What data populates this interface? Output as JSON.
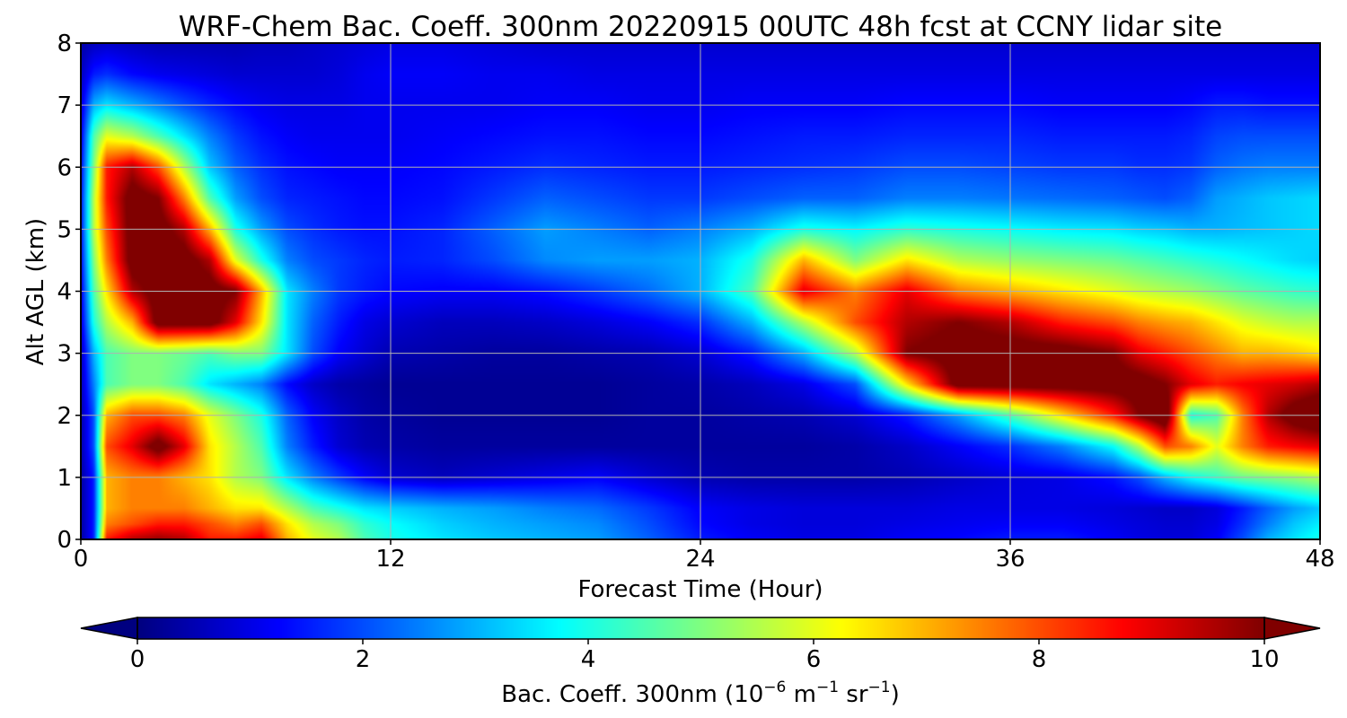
{
  "chart_data": {
    "type": "heatmap",
    "title": "WRF-Chem Bac. Coeff. 300nm  20220915 00UTC 48h fcst at CCNY lidar site",
    "xlabel": "Forecast Time (Hour)",
    "ylabel": "Alt AGL (km)",
    "xlim": [
      0,
      48
    ],
    "ylim": [
      0,
      8
    ],
    "x_ticks": [
      0,
      12,
      24,
      36,
      48
    ],
    "y_ticks": [
      0,
      1,
      2,
      3,
      4,
      5,
      6,
      7,
      8
    ],
    "grid": true,
    "colormap": "jet",
    "colorbar": {
      "orientation": "horizontal",
      "placement": "bottom",
      "extend": "both",
      "range": [
        0,
        10
      ],
      "ticks": [
        0,
        2,
        4,
        6,
        8,
        10
      ],
      "label_main": "Bac. Coeff. 300nm  (10",
      "label_exp1": "−6",
      "label_mid": " m",
      "label_exp2": "−1",
      "label_mid2": " sr",
      "label_exp3": "−1",
      "label_end": ")"
    },
    "x_hours": [
      0,
      0.5,
      1,
      2,
      3,
      4,
      5,
      6,
      7,
      8,
      9,
      10,
      11,
      12,
      14,
      16,
      18,
      20,
      22,
      24,
      26,
      28,
      30,
      32,
      34,
      36,
      38,
      40,
      41,
      42,
      43,
      44,
      45,
      46,
      47,
      48
    ],
    "y_km": [
      0,
      0.25,
      0.5,
      1,
      1.5,
      2,
      2.5,
      3,
      3.5,
      4,
      4.5,
      5,
      5.5,
      6,
      6.5,
      7,
      7.5,
      8
    ],
    "values": [
      [
        0.3,
        1.5,
        8.5,
        9.5,
        9.8,
        9.5,
        8.5,
        8.5,
        9.0,
        7.0,
        6.0,
        5.5,
        4.5,
        4.0,
        3.5,
        3.2,
        3.0,
        2.8,
        2.2,
        1.5,
        1.2,
        1.0,
        1.0,
        1.2,
        1.3,
        1.5,
        1.5,
        1.2,
        1.0,
        0.9,
        0.9,
        1.2,
        2.0,
        3.0,
        3.5,
        4.0
      ],
      [
        0.3,
        1.5,
        7.5,
        8.0,
        8.5,
        8.5,
        8.0,
        7.5,
        8.0,
        6.5,
        5.5,
        5.0,
        4.2,
        3.8,
        3.3,
        3.0,
        2.8,
        2.6,
        2.0,
        1.3,
        1.0,
        0.9,
        0.9,
        1.0,
        1.1,
        1.2,
        1.2,
        1.0,
        0.9,
        0.8,
        0.8,
        1.0,
        1.7,
        2.5,
        3.2,
        3.6
      ],
      [
        0.3,
        1.5,
        7.0,
        7.5,
        7.5,
        7.5,
        7.0,
        6.5,
        6.5,
        5.5,
        4.5,
        4.0,
        3.5,
        3.3,
        3.0,
        2.8,
        2.5,
        2.3,
        1.8,
        1.2,
        1.0,
        0.9,
        0.9,
        0.9,
        1.0,
        1.0,
        1.0,
        0.9,
        0.8,
        0.7,
        0.7,
        0.9,
        1.5,
        2.2,
        2.8,
        3.2
      ],
      [
        0.3,
        1.5,
        7.0,
        7.5,
        7.5,
        7.0,
        6.5,
        5.5,
        5.0,
        3.5,
        2.5,
        1.8,
        1.2,
        0.8,
        0.6,
        0.8,
        1.0,
        1.2,
        0.8,
        0.5,
        0.4,
        0.4,
        0.4,
        0.5,
        0.7,
        0.9,
        1.0,
        1.4,
        2.0,
        3.0,
        3.8,
        4.3,
        4.8,
        5.0,
        5.2,
        5.5
      ],
      [
        0.4,
        2.0,
        8.0,
        9.0,
        10.5,
        9.0,
        6.5,
        5.5,
        4.5,
        2.5,
        1.5,
        0.8,
        0.5,
        0.4,
        0.3,
        0.3,
        0.3,
        0.3,
        0.3,
        0.3,
        0.3,
        0.3,
        0.4,
        0.7,
        1.2,
        1.7,
        2.5,
        3.8,
        5.5,
        8.0,
        7.5,
        6.0,
        7.5,
        8.5,
        8.8,
        9.0
      ],
      [
        0.4,
        2.0,
        7.0,
        8.0,
        8.0,
        7.5,
        6.0,
        5.0,
        4.0,
        2.2,
        1.2,
        0.7,
        0.4,
        0.3,
        0.2,
        0.2,
        0.2,
        0.2,
        0.3,
        0.3,
        0.4,
        0.5,
        0.8,
        1.5,
        2.8,
        4.5,
        6.5,
        8.5,
        10.0,
        11.0,
        4.0,
        4.5,
        7.5,
        9.5,
        10.5,
        11.0
      ],
      [
        0.5,
        2.5,
        4.5,
        5.0,
        5.0,
        4.5,
        3.5,
        3.0,
        2.5,
        1.3,
        0.7,
        0.4,
        0.3,
        0.2,
        0.2,
        0.2,
        0.2,
        0.2,
        0.3,
        0.4,
        0.6,
        1.0,
        2.0,
        6.5,
        10.5,
        10.5,
        10.5,
        10.5,
        10.5,
        10.0,
        9.0,
        8.5,
        8.8,
        9.0,
        9.2,
        9.5
      ],
      [
        0.5,
        3.0,
        4.5,
        5.0,
        5.0,
        4.8,
        4.5,
        5.0,
        5.0,
        3.5,
        2.0,
        1.2,
        0.8,
        0.5,
        0.4,
        0.3,
        0.3,
        0.4,
        0.5,
        0.8,
        1.5,
        3.0,
        5.5,
        10.0,
        10.5,
        10.5,
        10.5,
        10.0,
        9.0,
        8.5,
        8.0,
        7.5,
        7.0,
        7.0,
        6.8,
        6.5
      ],
      [
        0.8,
        4.0,
        5.5,
        7.0,
        10.5,
        10.5,
        10.5,
        9.0,
        6.5,
        3.5,
        2.2,
        1.5,
        1.0,
        0.8,
        0.6,
        0.6,
        0.7,
        0.9,
        1.2,
        1.7,
        3.0,
        5.5,
        8.0,
        9.5,
        10.0,
        9.5,
        8.5,
        8.0,
        7.5,
        7.2,
        7.0,
        6.5,
        6.0,
        5.7,
        5.5,
        5.5
      ],
      [
        1.0,
        4.5,
        6.5,
        9.5,
        10.5,
        10.5,
        10.5,
        10.0,
        7.0,
        3.5,
        2.5,
        1.8,
        1.5,
        1.3,
        1.2,
        1.2,
        1.4,
        1.8,
        2.3,
        3.0,
        4.5,
        9.0,
        7.5,
        9.0,
        7.5,
        7.0,
        6.5,
        6.0,
        5.7,
        5.5,
        5.3,
        5.0,
        4.7,
        4.5,
        4.3,
        4.2
      ],
      [
        1.2,
        5.0,
        7.5,
        10.5,
        10.5,
        10.5,
        9.5,
        6.0,
        4.0,
        2.5,
        2.0,
        1.8,
        1.6,
        1.5,
        1.6,
        2.0,
        2.6,
        2.8,
        2.8,
        3.0,
        4.0,
        7.0,
        5.0,
        6.5,
        5.5,
        5.2,
        5.0,
        4.8,
        4.6,
        4.4,
        4.2,
        4.0,
        3.8,
        3.6,
        3.4,
        3.3
      ],
      [
        1.3,
        5.5,
        8.0,
        10.5,
        10.5,
        9.5,
        7.0,
        4.0,
        2.8,
        2.0,
        1.7,
        1.5,
        1.4,
        1.4,
        1.6,
        2.2,
        2.8,
        2.5,
        2.2,
        2.5,
        3.0,
        4.0,
        3.7,
        4.2,
        4.0,
        3.8,
        3.6,
        3.5,
        3.3,
        3.2,
        3.0,
        3.0,
        3.1,
        3.2,
        3.3,
        3.4
      ],
      [
        1.3,
        5.5,
        8.5,
        10.5,
        10.0,
        7.5,
        4.5,
        2.8,
        2.0,
        1.6,
        1.5,
        1.4,
        1.3,
        1.3,
        1.4,
        1.8,
        2.2,
        2.0,
        1.8,
        1.8,
        2.0,
        2.2,
        2.2,
        2.5,
        2.5,
        2.4,
        2.3,
        2.2,
        2.1,
        2.0,
        2.2,
        2.8,
        3.0,
        3.2,
        3.3,
        3.4
      ],
      [
        1.2,
        5.0,
        8.5,
        9.5,
        8.0,
        5.5,
        3.2,
        2.2,
        1.7,
        1.4,
        1.3,
        1.2,
        1.2,
        1.2,
        1.3,
        1.5,
        1.7,
        1.6,
        1.5,
        1.5,
        1.6,
        1.7,
        1.8,
        2.0,
        2.0,
        1.9,
        1.8,
        1.8,
        1.7,
        1.7,
        1.8,
        2.2,
        2.4,
        2.5,
        2.5,
        2.5
      ],
      [
        1.0,
        4.5,
        6.0,
        5.5,
        4.5,
        3.5,
        2.5,
        1.8,
        1.4,
        1.2,
        1.1,
        1.1,
        1.1,
        1.1,
        1.2,
        1.3,
        1.4,
        1.4,
        1.3,
        1.3,
        1.4,
        1.5,
        1.5,
        1.6,
        1.6,
        1.6,
        1.5,
        1.5,
        1.5,
        1.5,
        1.6,
        1.9,
        2.0,
        2.0,
        2.0,
        2.0
      ],
      [
        0.8,
        3.0,
        3.5,
        3.0,
        2.5,
        2.0,
        1.6,
        1.3,
        1.1,
        1.0,
        1.0,
        1.0,
        1.1,
        1.1,
        1.1,
        1.1,
        1.2,
        1.2,
        1.1,
        1.1,
        1.2,
        1.2,
        1.2,
        1.3,
        1.3,
        1.3,
        1.2,
        1.2,
        1.2,
        1.2,
        1.3,
        1.5,
        1.5,
        1.4,
        1.4,
        1.4
      ],
      [
        0.6,
        1.5,
        1.7,
        1.3,
        1.1,
        1.0,
        0.9,
        0.8,
        0.8,
        0.8,
        0.8,
        0.9,
        1.1,
        1.2,
        1.2,
        1.1,
        1.1,
        1.0,
        1.0,
        1.0,
        1.0,
        1.0,
        1.0,
        1.0,
        1.0,
        1.0,
        1.0,
        1.0,
        1.0,
        1.0,
        1.0,
        1.0,
        1.0,
        1.0,
        1.0,
        1.0
      ],
      [
        0.4,
        0.6,
        0.7,
        0.6,
        0.5,
        0.5,
        0.5,
        0.5,
        0.6,
        0.6,
        0.7,
        0.8,
        0.9,
        1.0,
        1.0,
        0.9,
        0.8,
        0.8,
        0.8,
        0.8,
        0.8,
        0.8,
        0.8,
        0.8,
        0.8,
        0.8,
        0.8,
        0.8,
        0.8,
        0.8,
        0.8,
        0.8,
        0.8,
        0.8,
        0.8,
        0.8
      ]
    ]
  }
}
